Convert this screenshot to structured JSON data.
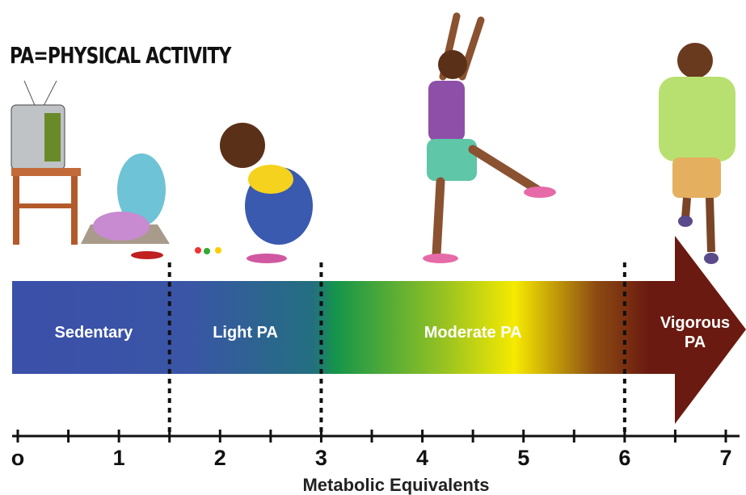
{
  "title": "PA=PHYSICAL ACTIVITY",
  "axis": {
    "label": "Metabolic Equivalents",
    "range": [
      0,
      7
    ],
    "ticks": [
      {
        "value": 0,
        "label": "o"
      },
      1,
      2,
      3,
      4,
      5,
      6,
      7
    ]
  },
  "zones": [
    {
      "label": "Sedentary",
      "from": 0,
      "to": 1.5
    },
    {
      "label": "Light PA",
      "from": 1.5,
      "to": 3
    },
    {
      "label": "Moderate PA",
      "from": 3,
      "to": 6
    },
    {
      "label": "Vigorous PA",
      "from": 6
    }
  ]
}
